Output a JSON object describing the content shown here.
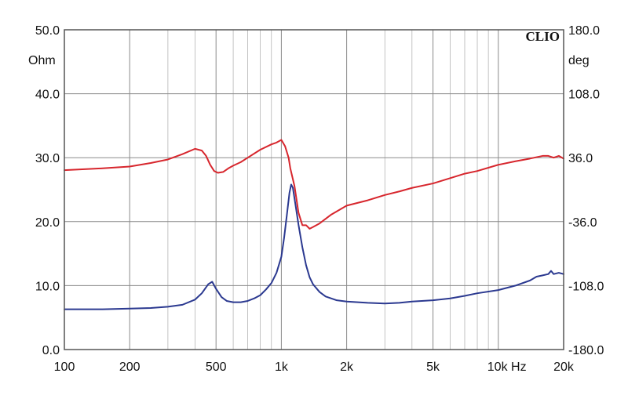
{
  "chart_data": {
    "type": "line",
    "brand": "CLIO",
    "xscale": "log",
    "xlim": [
      100,
      20000
    ],
    "x_tick_labels": [
      {
        "value": 100,
        "label": "100"
      },
      {
        "value": 200,
        "label": "200"
      },
      {
        "value": 500,
        "label": "500"
      },
      {
        "value": 1000,
        "label": "1k"
      },
      {
        "value": 2000,
        "label": "2k"
      },
      {
        "value": 5000,
        "label": "5k"
      },
      {
        "value": 10000,
        "label": "10k Hz"
      },
      {
        "value": 20000,
        "label": "20k"
      }
    ],
    "y_left": {
      "unit": "Ohm",
      "lim": [
        0,
        50
      ],
      "ticks": [
        0,
        10,
        20,
        30,
        40,
        50
      ],
      "tick_labels": [
        "0.0",
        "10.0",
        "20.0",
        "30.0",
        "40.0",
        "50.0"
      ]
    },
    "y_right": {
      "unit": "deg",
      "lim": [
        -180,
        180
      ],
      "ticks": [
        -180,
        -108,
        -36,
        36,
        108,
        180
      ],
      "tick_labels": [
        "-180.0",
        "-108.0",
        "-36.0",
        "36.0",
        "108.0",
        "180.0"
      ]
    },
    "grid": true,
    "series": [
      {
        "axis": "left",
        "color": "#2b3990",
        "x": [
          100,
          150,
          200,
          250,
          300,
          350,
          400,
          430,
          460,
          480,
          500,
          530,
          560,
          600,
          650,
          700,
          750,
          800,
          850,
          900,
          950,
          1000,
          1030,
          1060,
          1090,
          1110,
          1130,
          1160,
          1200,
          1250,
          1300,
          1350,
          1400,
          1500,
          1600,
          1800,
          2000,
          2500,
          3000,
          3500,
          4000,
          5000,
          6000,
          7000,
          8000,
          10000,
          12000,
          14000,
          15000,
          16000,
          17000,
          17500,
          18000,
          19000,
          20000
        ],
        "y": [
          6.3,
          6.3,
          6.4,
          6.5,
          6.7,
          7.0,
          7.8,
          8.8,
          10.2,
          10.6,
          9.5,
          8.2,
          7.6,
          7.4,
          7.4,
          7.6,
          8.0,
          8.5,
          9.4,
          10.4,
          12.0,
          14.5,
          17.5,
          21.0,
          24.5,
          25.8,
          25.3,
          22.8,
          19.5,
          16.0,
          13.2,
          11.3,
          10.2,
          9.0,
          8.3,
          7.7,
          7.5,
          7.3,
          7.2,
          7.3,
          7.5,
          7.7,
          8.0,
          8.4,
          8.8,
          9.3,
          10.0,
          10.8,
          11.4,
          11.6,
          11.8,
          12.3,
          11.8,
          12.0,
          11.8
        ]
      },
      {
        "axis": "right",
        "color": "#d7262d",
        "x": [
          100,
          150,
          200,
          250,
          300,
          350,
          400,
          430,
          450,
          470,
          490,
          510,
          540,
          570,
          600,
          650,
          700,
          800,
          900,
          950,
          1000,
          1040,
          1080,
          1100,
          1150,
          1200,
          1250,
          1300,
          1350,
          1400,
          1500,
          1700,
          2000,
          2500,
          3000,
          3500,
          4000,
          5000,
          6000,
          7000,
          8000,
          10000,
          12000,
          14000,
          16000,
          17000,
          18000,
          19000,
          20000
        ],
        "y": [
          22,
          24,
          26,
          30,
          34,
          40,
          46,
          44,
          38,
          28,
          21,
          19,
          20,
          24,
          27,
          31,
          36,
          45,
          51,
          53,
          56,
          49,
          36,
          24,
          4,
          -26,
          -40,
          -40,
          -44,
          -42,
          -38,
          -28,
          -18,
          -12,
          -6,
          -2,
          2,
          7,
          13,
          18,
          21,
          28,
          32,
          35,
          38,
          38,
          36,
          38,
          35
        ]
      }
    ]
  }
}
